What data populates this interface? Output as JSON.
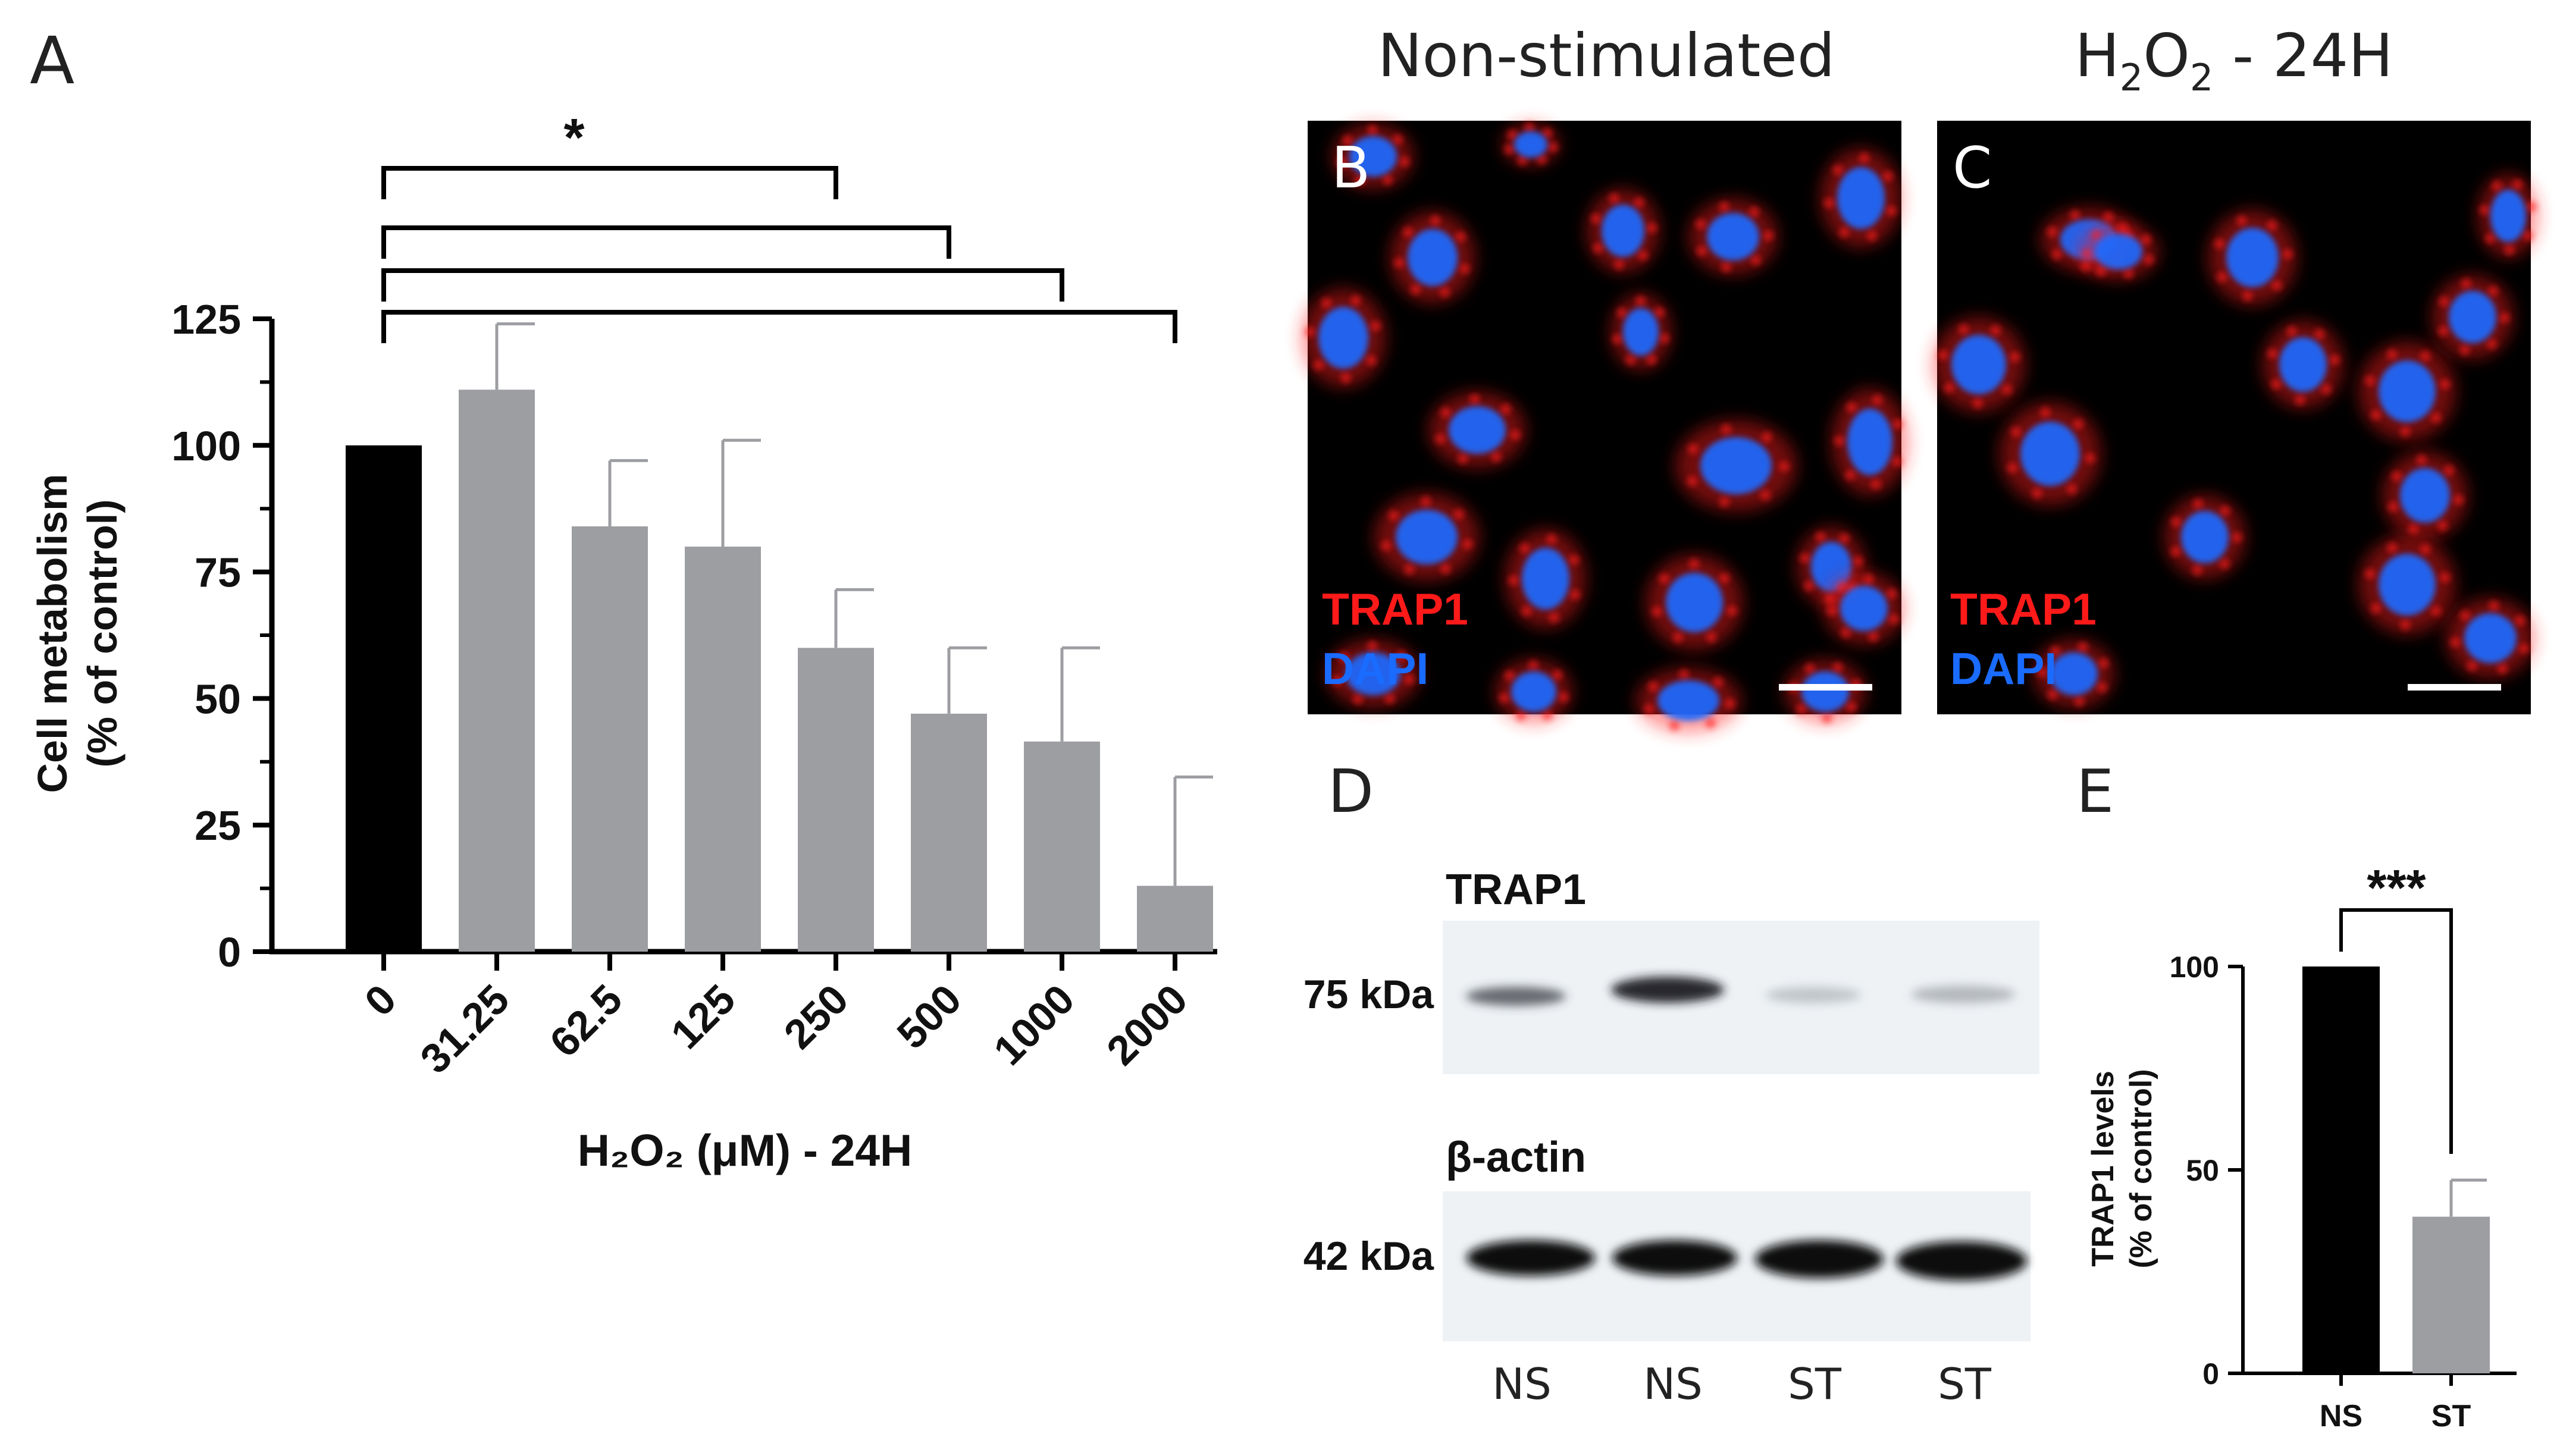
{
  "panels": {
    "A": {
      "letter": "A",
      "chart_data": {
        "type": "bar",
        "categories": [
          "0",
          "31.25",
          "62.5",
          "125",
          "250",
          "500",
          "1000",
          "2000"
        ],
        "values": [
          100,
          111,
          84,
          80,
          60,
          47,
          41.5,
          13
        ],
        "errors": [
          0,
          13,
          13,
          21,
          11.5,
          13,
          18.5,
          21.5
        ],
        "bar_colors": [
          "#000000",
          "#9d9ea2",
          "#9d9ea2",
          "#9d9ea2",
          "#9d9ea2",
          "#9d9ea2",
          "#9d9ea2",
          "#9d9ea2"
        ],
        "ylabel_line1": "Cell metabolism",
        "ylabel_line2": "(% of control)",
        "xlabel": "H₂O₂ (μM) - 24H",
        "ylim": [
          0,
          125
        ],
        "yticks": [
          0,
          25,
          50,
          75,
          100,
          125
        ],
        "ytick_labels": [
          "0",
          "25",
          "50",
          "75",
          "100",
          "125"
        ],
        "significance": [
          {
            "from": "0",
            "to": "250",
            "label": "*"
          },
          {
            "from": "0",
            "to": "500",
            "label": ""
          },
          {
            "from": "0",
            "to": "1000",
            "label": ""
          },
          {
            "from": "0",
            "to": "2000",
            "label": ""
          }
        ],
        "grid": false,
        "legend": "none"
      }
    },
    "B": {
      "letter": "B",
      "header": "Non-stimulated",
      "legend_trap1": "TRAP1",
      "legend_dapi": "DAPI"
    },
    "C": {
      "letter": "C",
      "header_main": "H",
      "header_sub1": "2",
      "header_mid": "O",
      "header_sub2": "2",
      "header_tail": " - 24H",
      "legend_trap1": "TRAP1",
      "legend_dapi": "DAPI"
    },
    "D": {
      "letter": "D",
      "blot1_title": "TRAP1",
      "blot1_mw": "75 kDa",
      "blot2_title": "β-actin",
      "blot2_mw": "42 kDa",
      "lanes": [
        "NS",
        "NS",
        "ST",
        "ST"
      ]
    },
    "E": {
      "letter": "E",
      "chart_data": {
        "type": "bar",
        "categories": [
          "NS",
          "ST"
        ],
        "values": [
          100,
          38.5
        ],
        "errors": [
          0,
          9
        ],
        "bar_colors": [
          "#000000",
          "#9d9ea2"
        ],
        "ylabel_line1": "TRAP1 levels",
        "ylabel_line2": "(% of control)",
        "ylim": [
          0,
          100
        ],
        "yticks": [
          0,
          50,
          100
        ],
        "ytick_labels": [
          "0",
          "50",
          "100"
        ],
        "significance": [
          {
            "from": "NS",
            "to": "ST",
            "label": "***"
          }
        ],
        "grid": false,
        "legend": "none"
      }
    }
  },
  "colors": {
    "trap1_red": "#ff1a1a",
    "dapi_blue": "#1a6bff",
    "micrograph_bg": "#000000",
    "blot_bg": "#eef2f5"
  }
}
